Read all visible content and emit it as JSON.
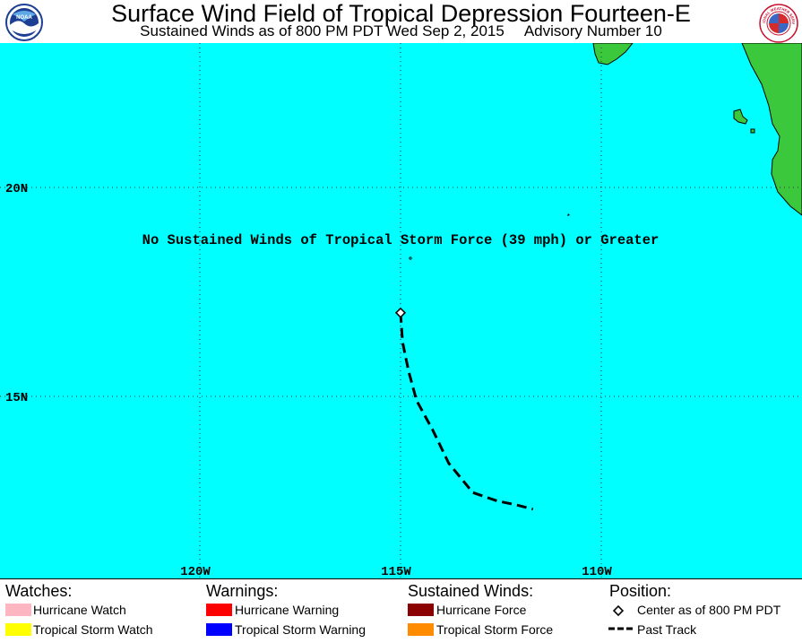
{
  "header": {
    "title": "Surface Wind Field of Tropical Depression Fourteen-E",
    "subtitle_time": "Sustained Winds as of 800 PM PDT Wed Sep 2, 2015",
    "subtitle_advisory": "Advisory Number 10",
    "left_logo_text": "NOAA",
    "right_logo_text": "NATIONAL WEATHER SERVICE"
  },
  "map": {
    "message": "No Sustained Winds of Tropical Storm Force (39 mph) or Greater",
    "lat_labels": [
      "20N",
      "15N"
    ],
    "lon_labels": [
      "120W",
      "115W",
      "110W"
    ],
    "colors": {
      "ocean": "#00ffff",
      "land": "#3cc83c",
      "track": "#000000",
      "grid": "#333333"
    },
    "storm_center": {
      "lon": -115.0,
      "lat": 17.0
    },
    "past_track": [
      {
        "lon": -115.0,
        "lat": 17.0
      },
      {
        "lon": -114.95,
        "lat": 16.3
      },
      {
        "lon": -114.8,
        "lat": 15.6
      },
      {
        "lon": -114.6,
        "lat": 14.9
      },
      {
        "lon": -114.2,
        "lat": 14.2
      },
      {
        "lon": -113.8,
        "lat": 13.4
      },
      {
        "lon": -113.2,
        "lat": 12.7
      },
      {
        "lon": -112.6,
        "lat": 12.5
      },
      {
        "lon": -112.1,
        "lat": 12.4
      },
      {
        "lon": -111.7,
        "lat": 12.3
      }
    ]
  },
  "legend": {
    "watches": {
      "heading": "Watches:",
      "items": [
        {
          "label": "Hurricane Watch",
          "color": "#ffb6c1"
        },
        {
          "label": "Tropical Storm Watch",
          "color": "#ffff00"
        }
      ]
    },
    "warnings": {
      "heading": "Warnings:",
      "items": [
        {
          "label": "Hurricane Warning",
          "color": "#ff0000"
        },
        {
          "label": "Tropical Storm Warning",
          "color": "#0000ff"
        }
      ]
    },
    "winds": {
      "heading": "Sustained Winds:",
      "items": [
        {
          "label": "Hurricane Force",
          "color": "#8b0000"
        },
        {
          "label": "Tropical Storm Force",
          "color": "#ff8c00"
        }
      ]
    },
    "position": {
      "heading": "Position:",
      "center_label": "Center as of 800 PM PDT",
      "track_label": "Past Track"
    }
  }
}
